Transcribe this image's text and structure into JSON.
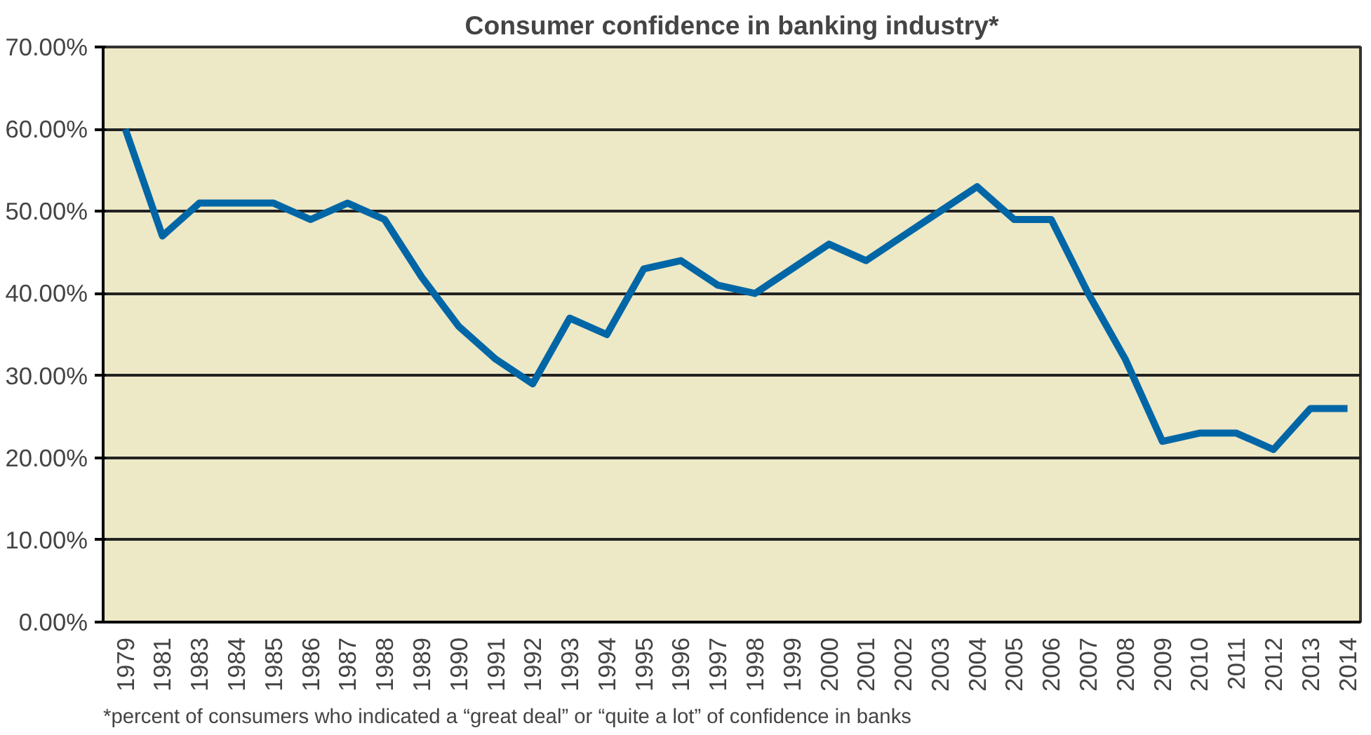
{
  "chart_data": {
    "type": "line",
    "title": "Consumer confidence in banking industry*",
    "categories": [
      "1979",
      "1981",
      "1983",
      "1984",
      "1985",
      "1986",
      "1987",
      "1988",
      "1989",
      "1990",
      "1991",
      "1992",
      "1993",
      "1994",
      "1995",
      "1996",
      "1997",
      "1998",
      "1999",
      "2000",
      "2001",
      "2002",
      "2003",
      "2004",
      "2005",
      "2006",
      "2007",
      "2008",
      "2009",
      "2010",
      "2011",
      "2012",
      "2013",
      "2014"
    ],
    "series": [
      {
        "color": "#0066a6",
        "values": [
          60,
          47,
          51,
          51,
          51,
          49,
          51,
          49,
          42,
          36,
          32,
          29,
          37,
          35,
          43,
          44,
          41,
          40,
          43,
          46,
          44,
          47,
          50,
          53,
          49,
          49,
          40,
          32,
          22,
          23,
          23,
          21,
          26,
          26
        ]
      }
    ],
    "ylim": [
      0,
      70
    ],
    "yticks": [
      {
        "value": 0,
        "label": "0.00%"
      },
      {
        "value": 10,
        "label": "10.00%"
      },
      {
        "value": 20,
        "label": "20.00%"
      },
      {
        "value": 30,
        "label": "30.00%"
      },
      {
        "value": 40,
        "label": "40.00%"
      },
      {
        "value": 50,
        "label": "50.00%"
      },
      {
        "value": 60,
        "label": "60.00%"
      },
      {
        "value": 70,
        "label": "70.00%"
      }
    ],
    "grid": "y",
    "marker": "none",
    "line_style": "solid",
    "annotations": [
      "*percent of consumers who indicated a “great deal” or “quite a lot” of confidence in banks"
    ]
  }
}
